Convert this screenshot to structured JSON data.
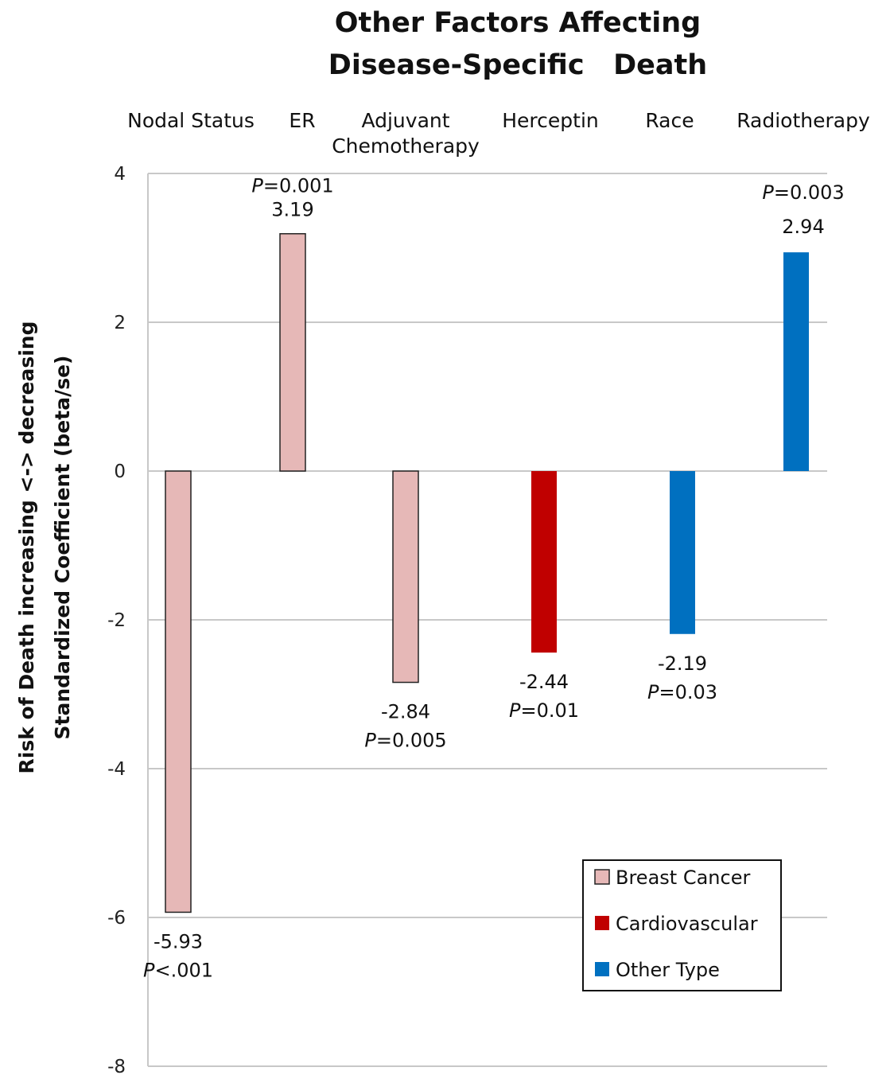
{
  "chart_data": {
    "type": "bar",
    "title_lines": [
      "Other Factors Affecting",
      "Disease-Specific   Death"
    ],
    "ylabel_lines": [
      "Risk of Death increasing <-> decreasing",
      "Standardized Coefficient (beta/se)"
    ],
    "ylim": [
      -8,
      4
    ],
    "yticks": [
      4,
      2,
      0,
      -2,
      -4,
      -6,
      -8
    ],
    "grid": true,
    "legend_position": "bottom-right",
    "categories": [
      [
        "Nodal Status"
      ],
      [
        "ER"
      ],
      [
        "Adjuvant",
        "Chemotherapy"
      ],
      [
        "Herceptin"
      ],
      [
        "Race"
      ],
      [
        "Radiotherapy"
      ]
    ],
    "values": [
      -5.93,
      3.19,
      -2.84,
      -2.44,
      -2.19,
      2.94
    ],
    "value_labels": [
      "-5.93",
      "3.19",
      "-2.84",
      "-2.44",
      "-2.19",
      "2.94"
    ],
    "p_labels": [
      {
        "prefix": "P",
        "rest": "<.001"
      },
      {
        "prefix": "P",
        "rest": "=0.001"
      },
      {
        "prefix": "P",
        "rest": "=0.005"
      },
      {
        "prefix": "P",
        "rest": "=0.01"
      },
      {
        "prefix": "P",
        "rest": "=0.03"
      },
      {
        "prefix": "P",
        "rest": "=0.003"
      }
    ],
    "bar_series": [
      0,
      0,
      0,
      1,
      2,
      2
    ],
    "series": [
      {
        "name": "Breast Cancer",
        "color": "#E6B8B7",
        "stroke": "#222222"
      },
      {
        "name": "Cardiovascular",
        "color": "#C00000",
        "stroke": "none"
      },
      {
        "name": "Other Type",
        "color": "#0070C0",
        "stroke": "none"
      }
    ]
  }
}
